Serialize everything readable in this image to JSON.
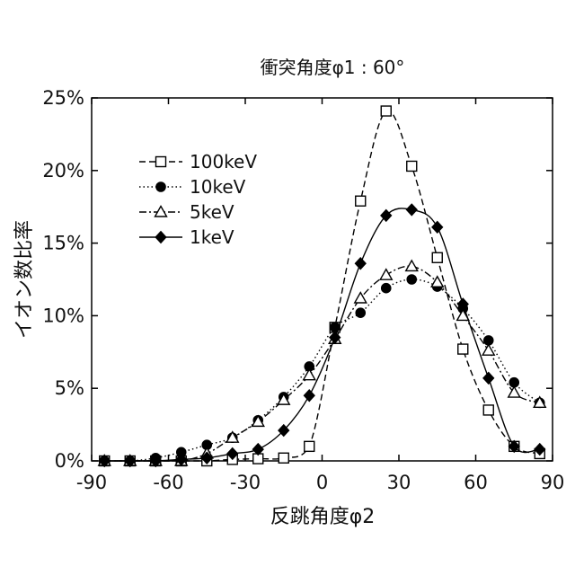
{
  "chart_data": {
    "type": "line",
    "title": "衝突角度φ1 : 60°",
    "xlabel": "反跳角度φ2",
    "ylabel": "イオン数比率",
    "xlim": [
      -90,
      90
    ],
    "ylim": [
      0,
      25
    ],
    "x_ticks": [
      -90,
      -60,
      -30,
      0,
      30,
      60,
      90
    ],
    "x_tick_labels": [
      "-90",
      "-60",
      "-30",
      "0",
      "30",
      "60",
      "90"
    ],
    "y_ticks": [
      0,
      5,
      10,
      15,
      20,
      25
    ],
    "y_tick_labels": [
      "0%",
      "5%",
      "10%",
      "15%",
      "20%",
      "25%"
    ],
    "grid": false,
    "legend_position": "upper-left",
    "x": [
      -85,
      -75,
      -65,
      -55,
      -45,
      -35,
      -25,
      -15,
      -5,
      5,
      15,
      25,
      35,
      45,
      55,
      65,
      75,
      85
    ],
    "series": [
      {
        "name": "100keV",
        "marker": "open-square",
        "line_style": "dashed",
        "color": "#000000",
        "values": [
          0.0,
          0.0,
          0.0,
          0.0,
          0.0,
          0.1,
          0.15,
          0.2,
          1.0,
          9.2,
          17.9,
          24.1,
          20.3,
          14.0,
          7.7,
          3.5,
          1.0,
          0.5
        ]
      },
      {
        "name": "10keV",
        "marker": "filled-circle",
        "line_style": "dotted",
        "color": "#000000",
        "values": [
          0.0,
          0.0,
          0.2,
          0.6,
          1.1,
          1.6,
          2.8,
          4.4,
          6.5,
          9.2,
          10.2,
          11.9,
          12.5,
          12.0,
          10.5,
          8.3,
          5.4,
          4.0
        ]
      },
      {
        "name": "5keV",
        "marker": "open-triangle",
        "line_style": "dashdot",
        "color": "#000000",
        "values": [
          0.0,
          0.0,
          0.0,
          0.0,
          0.5,
          1.6,
          2.7,
          4.2,
          5.9,
          8.4,
          11.2,
          12.8,
          13.4,
          12.3,
          10.0,
          7.6,
          4.7,
          4.0
        ]
      },
      {
        "name": "1keV",
        "marker": "filled-diamond",
        "line_style": "solid",
        "color": "#000000",
        "values": [
          0.0,
          0.0,
          0.0,
          0.1,
          0.2,
          0.5,
          0.8,
          2.1,
          4.5,
          8.5,
          13.6,
          16.9,
          17.3,
          16.1,
          10.8,
          5.7,
          1.0,
          0.8
        ]
      }
    ]
  }
}
